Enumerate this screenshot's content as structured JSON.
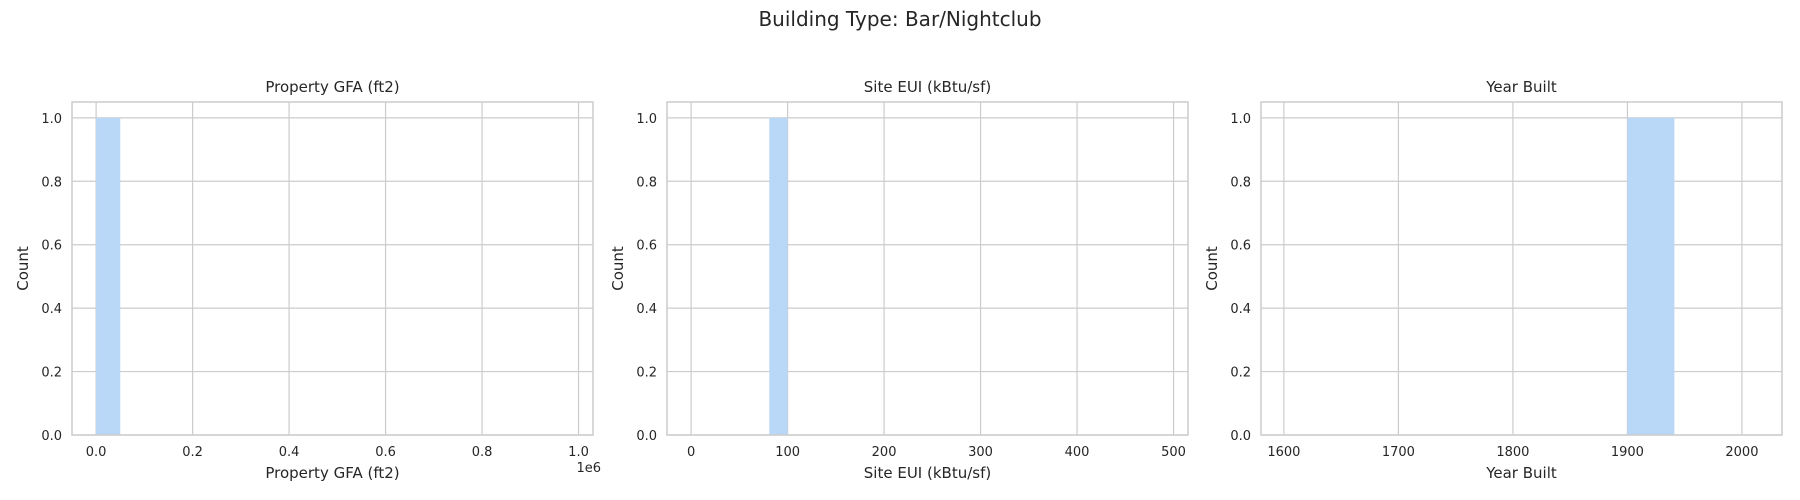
{
  "figure": {
    "suptitle": "Building Type: Bar/Nightclub"
  },
  "style": {
    "bar_color": "#b9d7f6",
    "grid_color": "#cccccc",
    "text_color": "#262626"
  },
  "chart_data": [
    {
      "type": "bar",
      "title": "Property GFA (ft2)",
      "xlabel": "Property GFA (ft2)",
      "ylabel": "Count",
      "offset_text": "1e6",
      "xlim": [
        -50000,
        1030000
      ],
      "ylim": [
        0,
        1.05
      ],
      "xticks": [
        0,
        200000,
        400000,
        600000,
        800000,
        1000000
      ],
      "xtick_labels": [
        "0.0",
        "0.2",
        "0.4",
        "0.6",
        "0.8",
        "1.0"
      ],
      "yticks": [
        0,
        0.2,
        0.4,
        0.6,
        0.8,
        1.0
      ],
      "ytick_labels": [
        "0.0",
        "0.2",
        "0.4",
        "0.6",
        "0.8",
        "1.0"
      ],
      "grid": true,
      "bins": [
        {
          "x0": 0,
          "x1": 50000,
          "count": 1
        }
      ]
    },
    {
      "type": "bar",
      "title": "Site EUI (kBtu/sf)",
      "xlabel": "Site EUI (kBtu/sf)",
      "ylabel": "Count",
      "xlim": [
        -25,
        515
      ],
      "ylim": [
        0,
        1.05
      ],
      "xticks": [
        0,
        100,
        200,
        300,
        400,
        500
      ],
      "xtick_labels": [
        "0",
        "100",
        "200",
        "300",
        "400",
        "500"
      ],
      "yticks": [
        0,
        0.2,
        0.4,
        0.6,
        0.8,
        1.0
      ],
      "ytick_labels": [
        "0.0",
        "0.2",
        "0.4",
        "0.6",
        "0.8",
        "1.0"
      ],
      "grid": true,
      "bins": [
        {
          "x0": 81,
          "x1": 100,
          "count": 1
        }
      ]
    },
    {
      "type": "bar",
      "title": "Year Built",
      "xlabel": "Year Built",
      "ylabel": "Count",
      "xlim": [
        1580,
        2035
      ],
      "ylim": [
        0,
        1.05
      ],
      "xticks": [
        1600,
        1700,
        1800,
        1900,
        2000
      ],
      "xtick_labels": [
        "1600",
        "1700",
        "1800",
        "1900",
        "2000"
      ],
      "yticks": [
        0,
        0.2,
        0.4,
        0.6,
        0.8,
        1.0
      ],
      "ytick_labels": [
        "0.0",
        "0.2",
        "0.4",
        "0.6",
        "0.8",
        "1.0"
      ],
      "grid": true,
      "bins": [
        {
          "x0": 1900,
          "x1": 1941,
          "count": 1
        }
      ]
    }
  ]
}
